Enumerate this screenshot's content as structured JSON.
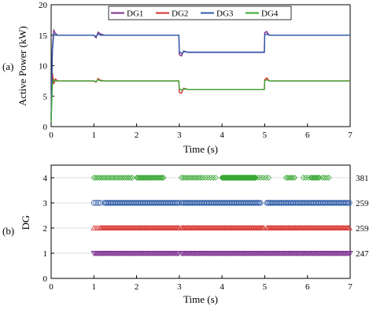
{
  "chart_data": [
    {
      "panel_label": "(a)",
      "type": "line",
      "xlabel": "Time (s)",
      "ylabel": "Active Power (kW)",
      "xlim": [
        0,
        7
      ],
      "ylim": [
        0,
        20
      ],
      "xticks": [
        "0",
        "1",
        "2",
        "3",
        "4",
        "5",
        "6",
        "7"
      ],
      "yticks": [
        "0",
        "5",
        "10",
        "15",
        "20"
      ],
      "grid": false,
      "legend": {
        "placement": "top-center",
        "entries": [
          "DG1",
          "DG2",
          "DG3",
          "DG4"
        ]
      },
      "colors": {
        "DG1": "#7b2d8e",
        "DG2": "#d6302b",
        "DG3": "#2e5ba8",
        "DG4": "#3aa835"
      },
      "series": [
        {
          "name": "DG1",
          "x": [
            0,
            0.03,
            0.06,
            0.1,
            0.15,
            0.2,
            1.0,
            1.05,
            1.1,
            1.15,
            1.25,
            2.99,
            3.0,
            3.05,
            3.1,
            3.2,
            4.99,
            5.0,
            5.05,
            5.1,
            5.2,
            7.0
          ],
          "values": [
            1.5,
            13.0,
            15.8,
            15.3,
            15.0,
            15.0,
            15.0,
            14.6,
            15.5,
            15.2,
            15.0,
            15.0,
            11.8,
            11.6,
            12.4,
            12.2,
            12.2,
            15.4,
            15.6,
            15.0,
            15.0,
            15.0
          ]
        },
        {
          "name": "DG2",
          "x": [
            0,
            0.03,
            0.06,
            0.1,
            0.15,
            0.2,
            1.0,
            1.05,
            1.1,
            1.15,
            1.25,
            2.99,
            3.0,
            3.05,
            3.1,
            3.2,
            4.99,
            5.0,
            5.05,
            5.1,
            5.2,
            7.0
          ],
          "values": [
            1.0,
            8.8,
            7.0,
            7.8,
            7.5,
            7.5,
            7.5,
            7.3,
            7.9,
            7.6,
            7.5,
            7.5,
            5.6,
            5.5,
            6.3,
            6.1,
            6.1,
            7.7,
            8.0,
            7.5,
            7.5,
            7.5
          ]
        },
        {
          "name": "DG3",
          "x": [
            0,
            0.03,
            0.06,
            0.1,
            0.15,
            0.2,
            1.0,
            1.05,
            1.1,
            1.15,
            1.25,
            2.99,
            3.0,
            3.05,
            3.1,
            3.2,
            4.99,
            5.0,
            5.05,
            5.1,
            5.2,
            7.0
          ],
          "values": [
            1.2,
            12.5,
            15.2,
            15.0,
            15.0,
            15.0,
            15.0,
            14.8,
            15.2,
            15.0,
            15.0,
            15.0,
            12.3,
            12.0,
            12.3,
            12.2,
            12.2,
            15.0,
            15.2,
            15.0,
            15.0,
            15.0
          ]
        },
        {
          "name": "DG4",
          "x": [
            0,
            0.03,
            0.06,
            0.1,
            0.15,
            0.2,
            1.0,
            1.05,
            1.1,
            1.15,
            1.25,
            2.99,
            3.0,
            3.05,
            3.1,
            3.2,
            4.99,
            5.0,
            5.05,
            5.1,
            5.2,
            7.0
          ],
          "values": [
            0.8,
            7.0,
            7.7,
            7.5,
            7.5,
            7.5,
            7.5,
            7.4,
            7.7,
            7.5,
            7.5,
            7.5,
            6.2,
            6.0,
            6.2,
            6.1,
            6.1,
            7.5,
            7.7,
            7.5,
            7.5,
            7.5
          ]
        }
      ]
    },
    {
      "panel_label": "(b)",
      "type": "scatter",
      "xlabel": "Time (s)",
      "ylabel": "DG",
      "xlim": [
        0,
        7
      ],
      "ylim": [
        0,
        4.5
      ],
      "xticks": [
        "0",
        "1",
        "2",
        "3",
        "4",
        "5",
        "6",
        "7"
      ],
      "yticks": [
        "0",
        "1",
        "2",
        "3",
        "4"
      ],
      "grid": true,
      "series": [
        {
          "name": "DG1",
          "y": 1,
          "marker": "triangle-down",
          "color": "#7b2d8e",
          "count_label": "247",
          "ranges": [
            [
              1.0,
              3.0,
              0.028
            ],
            [
              3.05,
              7.0,
              0.028
            ]
          ]
        },
        {
          "name": "DG2",
          "y": 2,
          "marker": "triangle-up",
          "color": "#d6302b",
          "count_label": "259",
          "ranges": [
            [
              1.0,
              1.1,
              0.05
            ],
            [
              1.15,
              3.0,
              0.028
            ],
            [
              3.05,
              5.0,
              0.028
            ],
            [
              5.05,
              7.0,
              0.028
            ]
          ]
        },
        {
          "name": "DG3",
          "y": 3,
          "marker": "circle",
          "color": "#2e5ba8",
          "count_label": "259",
          "ranges": [
            [
              1.0,
              1.15,
              0.05
            ],
            [
              1.25,
              3.0,
              0.028
            ],
            [
              3.05,
              4.9,
              0.028
            ],
            [
              5.05,
              7.0,
              0.028
            ]
          ]
        },
        {
          "name": "DG4",
          "y": 4,
          "marker": "diamond",
          "color": "#3aa835",
          "count_label": "381",
          "ranges": [
            [
              1.0,
              1.9,
              0.045
            ],
            [
              2.0,
              2.65,
              0.03
            ],
            [
              3.05,
              3.5,
              0.045
            ],
            [
              3.55,
              3.9,
              0.06
            ],
            [
              4.0,
              4.8,
              0.012
            ],
            [
              4.85,
              5.1,
              0.06
            ],
            [
              5.5,
              5.7,
              0.04
            ],
            [
              5.9,
              6.1,
              0.06
            ],
            [
              6.1,
              6.3,
              0.03
            ],
            [
              6.35,
              6.5,
              0.05
            ]
          ]
        }
      ]
    }
  ]
}
